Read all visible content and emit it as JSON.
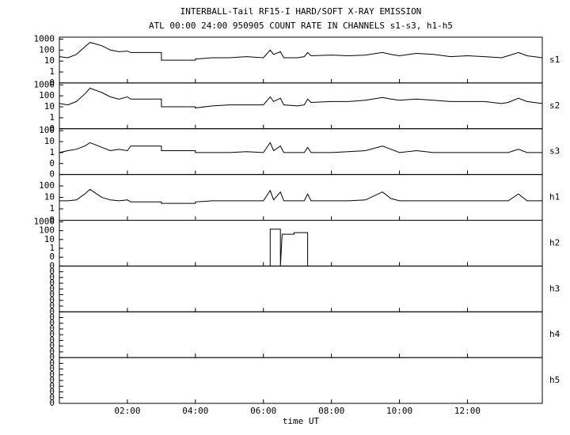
{
  "title": "INTERBALL-Tail RF15-I HARD/SOFT X-RAY EMISSION",
  "subtitle": "ATL 00:00 24:00 950905  COUNT RATE IN CHANNELS s1-s3, h1-h5",
  "x_axis": {
    "label": "time UT",
    "xlim": [
      0,
      14.2
    ],
    "xticks": [
      {
        "value": 2,
        "label": "02:00"
      },
      {
        "value": 4,
        "label": "04:00"
      },
      {
        "value": 6,
        "label": "06:00"
      },
      {
        "value": 8,
        "label": "08:00"
      },
      {
        "value": 10,
        "label": "10:00"
      },
      {
        "value": 12,
        "label": "12:00"
      }
    ]
  },
  "chart_data": [
    {
      "type": "line",
      "name": "s1",
      "log": true,
      "color": "#000000",
      "ylim": [
        0.1,
        1500
      ],
      "yticks": [
        {
          "value": 0.1,
          "label": "0"
        },
        1,
        10,
        100,
        1000
      ],
      "x": [
        0,
        0.25,
        0.5,
        0.75,
        0.9,
        1.25,
        1.5,
        1.75,
        2.0,
        2.1,
        3.0,
        3.0,
        4.0,
        4.0,
        4.5,
        5.0,
        5.5,
        6.0,
        6.2,
        6.3,
        6.5,
        6.6,
        7.0,
        7.2,
        7.3,
        7.4,
        8.0,
        8.5,
        9.0,
        9.5,
        9.75,
        10.0,
        10.5,
        11.0,
        11.5,
        12.0,
        12.5,
        13.0,
        13.2,
        13.5,
        13.75,
        14.2
      ],
      "values": [
        25,
        20,
        40,
        200,
        500,
        250,
        100,
        70,
        80,
        60,
        60,
        12,
        12,
        15,
        20,
        20,
        25,
        20,
        100,
        40,
        70,
        20,
        20,
        25,
        60,
        30,
        35,
        30,
        35,
        60,
        40,
        30,
        50,
        40,
        25,
        30,
        25,
        20,
        30,
        60,
        30,
        20
      ]
    },
    {
      "type": "line",
      "name": "s2",
      "log": true,
      "color": "#000000",
      "ylim": [
        0.1,
        1500
      ],
      "yticks": [
        {
          "value": 0.1,
          "label": "0"
        },
        1,
        10,
        100,
        1000
      ],
      "x": [
        0,
        0.25,
        0.5,
        0.75,
        0.9,
        1.25,
        1.5,
        1.75,
        2.0,
        2.1,
        3.0,
        3.0,
        4.0,
        4.0,
        4.5,
        5.0,
        5.5,
        6.0,
        6.2,
        6.3,
        6.5,
        6.6,
        7.0,
        7.2,
        7.3,
        7.4,
        8.0,
        8.5,
        9.0,
        9.5,
        9.75,
        10.0,
        10.5,
        11.0,
        11.5,
        12.0,
        12.5,
        13.0,
        13.2,
        13.5,
        13.75,
        14.2
      ],
      "values": [
        20,
        15,
        30,
        150,
        500,
        200,
        80,
        50,
        80,
        50,
        50,
        10,
        10,
        8,
        12,
        15,
        15,
        15,
        80,
        30,
        60,
        15,
        12,
        15,
        50,
        25,
        30,
        30,
        40,
        70,
        50,
        40,
        50,
        40,
        30,
        30,
        30,
        20,
        25,
        60,
        30,
        20
      ]
    },
    {
      "type": "line",
      "name": "s3",
      "log": true,
      "color": "#000000",
      "ylim": [
        0.01,
        150
      ],
      "yticks": [
        {
          "value": 0.01,
          "label": "0"
        },
        {
          "value": 0.1,
          "label": "0"
        },
        1,
        10,
        100
      ],
      "x": [
        0,
        0.25,
        0.5,
        0.75,
        0.9,
        1.25,
        1.5,
        1.75,
        2.0,
        2.1,
        3.0,
        3.0,
        4.0,
        4.0,
        4.5,
        5.0,
        5.5,
        6.0,
        6.2,
        6.3,
        6.5,
        6.6,
        7.0,
        7.2,
        7.3,
        7.4,
        8.0,
        8.5,
        9.0,
        9.5,
        9.75,
        10.0,
        10.5,
        11.0,
        11.5,
        12.0,
        12.5,
        13.0,
        13.2,
        13.5,
        13.75,
        14.2
      ],
      "values": [
        1,
        1.5,
        2,
        4,
        8,
        3,
        1.5,
        2,
        1.5,
        4,
        4,
        1.5,
        1.5,
        1,
        1,
        1,
        1.2,
        1,
        8,
        1.5,
        4,
        1,
        1,
        1,
        3,
        1,
        1,
        1.2,
        1.5,
        4,
        2,
        1,
        1.5,
        1,
        1,
        1,
        1,
        1,
        1,
        2,
        1,
        1
      ]
    },
    {
      "type": "line",
      "name": "h1",
      "log": true,
      "color": "#000000",
      "ylim": [
        0.1,
        1000
      ],
      "yticks": [
        {
          "value": 0.1,
          "label": "0"
        },
        1,
        10,
        100
      ],
      "x": [
        0,
        0.25,
        0.5,
        0.75,
        0.9,
        1.25,
        1.5,
        1.75,
        2.0,
        2.1,
        3.0,
        3.0,
        4.0,
        4.0,
        4.5,
        5.0,
        5.5,
        6.0,
        6.2,
        6.3,
        6.5,
        6.6,
        7.0,
        7.2,
        7.3,
        7.4,
        8.0,
        8.5,
        9.0,
        9.5,
        9.75,
        10.0,
        10.5,
        11.0,
        11.5,
        12.0,
        12.5,
        13.0,
        13.2,
        13.5,
        13.75,
        14.2
      ],
      "values": [
        5,
        5,
        6,
        20,
        50,
        10,
        6,
        5,
        6,
        4,
        4,
        3,
        3,
        4,
        5,
        5,
        5,
        5,
        40,
        6,
        30,
        5,
        5,
        5,
        20,
        5,
        5,
        5,
        6,
        30,
        8,
        5,
        5,
        5,
        5,
        5,
        5,
        5,
        5,
        20,
        5,
        5
      ]
    },
    {
      "type": "line",
      "name": "h2",
      "log": true,
      "color": "#000000",
      "ylim": [
        0.01,
        1500
      ],
      "yticks": [
        {
          "value": 0.01,
          "label": "0"
        },
        {
          "value": 0.1,
          "label": "0"
        },
        1,
        10,
        100,
        1000
      ],
      "x": [
        6.2,
        6.2,
        6.5,
        6.5,
        6.55,
        6.9,
        6.9,
        7.3,
        7.3
      ],
      "values": [
        0.01,
        150,
        150,
        0.01,
        40,
        40,
        60,
        60,
        0.01
      ]
    },
    {
      "type": "line",
      "name": "h3",
      "log": true,
      "color": "#000000",
      "ylim": [
        1e-08,
        1
      ],
      "yticks": [
        {
          "value": 1e-08,
          "label": "0"
        },
        {
          "value": 1e-07,
          "label": "0"
        },
        {
          "value": 1e-06,
          "label": "0"
        },
        {
          "value": 1e-05,
          "label": "0"
        },
        {
          "value": 0.0001,
          "label": "0"
        },
        {
          "value": 0.001,
          "label": "0"
        },
        {
          "value": 0.01,
          "label": "0"
        },
        {
          "value": 0.1,
          "label": "0"
        }
      ]
    },
    {
      "type": "line",
      "name": "h4",
      "log": true,
      "color": "#000000",
      "ylim": [
        1e-08,
        1
      ],
      "yticks": [
        {
          "value": 1e-08,
          "label": "0"
        },
        {
          "value": 1e-07,
          "label": "0"
        },
        {
          "value": 1e-06,
          "label": "0"
        },
        {
          "value": 1e-05,
          "label": "0"
        },
        {
          "value": 0.0001,
          "label": "0"
        },
        {
          "value": 0.001,
          "label": "0"
        },
        {
          "value": 0.01,
          "label": "0"
        },
        {
          "value": 0.1,
          "label": "0"
        }
      ]
    },
    {
      "type": "line",
      "name": "h5",
      "log": true,
      "color": "#000000",
      "ylim": [
        1e-08,
        1
      ],
      "yticks": [
        {
          "value": 1e-08,
          "label": "0"
        },
        {
          "value": 1e-07,
          "label": "0"
        },
        {
          "value": 1e-06,
          "label": "0"
        },
        {
          "value": 1e-05,
          "label": "0"
        },
        {
          "value": 0.0001,
          "label": "0"
        },
        {
          "value": 0.001,
          "label": "0"
        },
        {
          "value": 0.01,
          "label": "0"
        },
        {
          "value": 0.1,
          "label": "0"
        }
      ]
    }
  ]
}
